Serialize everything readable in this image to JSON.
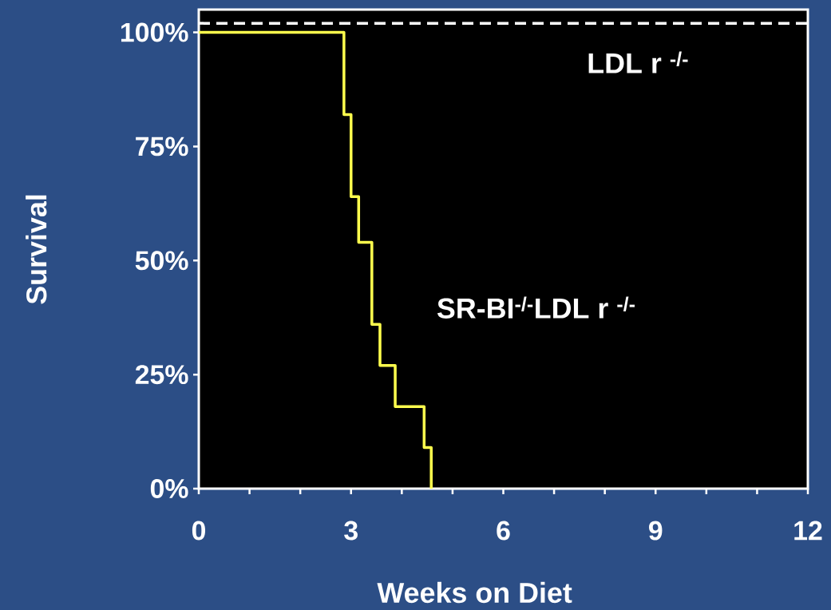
{
  "chart_data": {
    "type": "step",
    "xlabel": "Weeks on Diet",
    "ylabel": "Survival",
    "xlim": [
      0,
      12
    ],
    "ylim": [
      0,
      105
    ],
    "xticks": [
      0,
      {
        "value": 1,
        "label": null
      },
      {
        "value": 2,
        "label": null
      },
      3,
      {
        "value": 4,
        "label": null
      },
      {
        "value": 5,
        "label": null
      },
      6,
      {
        "value": 7,
        "label": null
      },
      {
        "value": 8,
        "label": null
      },
      9,
      {
        "value": 10,
        "label": null
      },
      {
        "value": 11,
        "label": null
      },
      12
    ],
    "yticks": [
      {
        "value": 0,
        "label": "0%"
      },
      {
        "value": 25,
        "label": "25%"
      },
      {
        "value": 50,
        "label": "50%"
      },
      {
        "value": 75,
        "label": "75%"
      },
      {
        "value": 100,
        "label": "100%"
      }
    ],
    "grid": false,
    "series": [
      {
        "name": "LDL r $^{-/-}$",
        "color": "#ffffff",
        "line_style": "dashed",
        "x": [
          0,
          12
        ],
        "values": [
          102,
          102
        ]
      },
      {
        "name": "SR-BI$^{-/-}$LDL r $^{-/-}$",
        "color": "#ffff4d",
        "line_style": "solid",
        "x": [
          0,
          2.86,
          3.0,
          3.15,
          3.41,
          3.57,
          3.87,
          4.44,
          4.58
        ],
        "values": [
          100,
          82,
          64,
          54,
          36,
          27,
          18,
          9,
          0
        ]
      }
    ]
  }
}
